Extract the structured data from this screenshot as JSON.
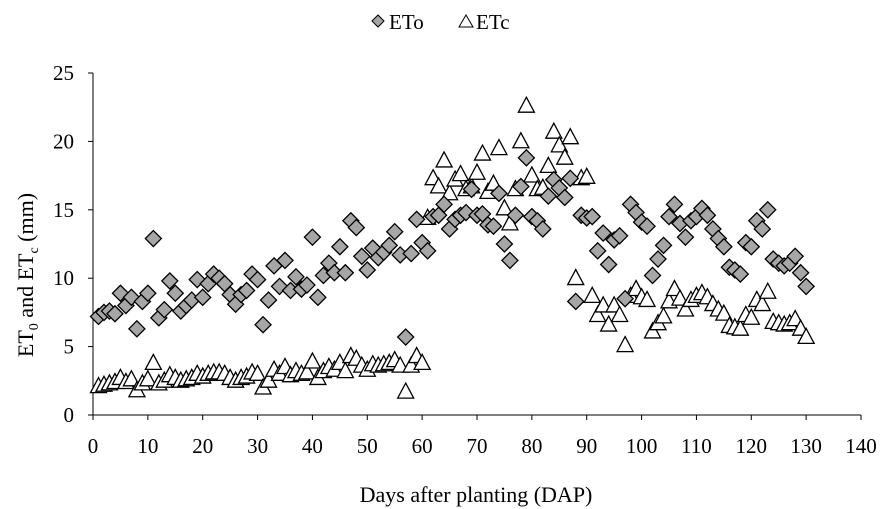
{
  "chart_data": {
    "type": "scatter",
    "legend": {
      "placement": "top-center"
    },
    "xlabel": "Days after planting (DAP)",
    "ylabel": {
      "p1": "ET",
      "s1": "0",
      "p2": " and ET",
      "s2": "c",
      "p3": " (mm)"
    },
    "xlim": [
      0,
      140
    ],
    "ylim": [
      0,
      25
    ],
    "xticks": [
      0,
      10,
      20,
      30,
      40,
      50,
      60,
      70,
      80,
      90,
      100,
      110,
      120,
      130,
      140
    ],
    "yticks": [
      0,
      5,
      10,
      15,
      20,
      25
    ],
    "grid": false,
    "series": [
      {
        "name": "ETo",
        "marker": "diamond",
        "color": "#a6a6a6",
        "x": [
          1,
          2,
          3,
          4,
          5,
          6,
          7,
          8,
          9,
          10,
          11,
          12,
          13,
          14,
          15,
          16,
          17,
          18,
          19,
          20,
          21,
          22,
          23,
          24,
          25,
          26,
          27,
          28,
          29,
          30,
          31,
          32,
          33,
          34,
          35,
          36,
          37,
          38,
          39,
          40,
          41,
          42,
          43,
          44,
          45,
          46,
          47,
          48,
          49,
          50,
          51,
          52,
          53,
          54,
          55,
          56,
          57,
          58,
          59,
          60,
          61,
          62,
          63,
          64,
          65,
          66,
          67,
          68,
          69,
          70,
          71,
          72,
          73,
          74,
          75,
          76,
          77,
          78,
          79,
          80,
          81,
          82,
          83,
          84,
          85,
          86,
          87,
          88,
          89,
          90,
          91,
          92,
          93,
          94,
          95,
          96,
          97,
          98,
          99,
          100,
          101,
          102,
          103,
          104,
          105,
          106,
          107,
          108,
          109,
          110,
          111,
          112,
          113,
          114,
          115,
          116,
          117,
          118,
          119,
          120,
          121,
          122,
          123,
          124,
          125,
          126,
          127,
          128,
          129,
          130
        ],
        "y": [
          7.2,
          7.5,
          7.6,
          7.4,
          8.9,
          8.0,
          8.6,
          6.3,
          8.3,
          8.9,
          12.9,
          7.1,
          7.7,
          9.8,
          8.9,
          7.6,
          8.0,
          8.4,
          9.9,
          8.6,
          9.6,
          10.3,
          10.0,
          9.6,
          8.8,
          8.1,
          8.8,
          9.1,
          10.3,
          9.9,
          6.6,
          8.4,
          10.9,
          9.4,
          11.3,
          9.1,
          10.1,
          9.2,
          9.5,
          13.0,
          8.6,
          10.2,
          11.1,
          10.4,
          12.3,
          10.4,
          14.2,
          13.7,
          11.6,
          10.6,
          12.2,
          11.5,
          11.9,
          12.4,
          13.4,
          11.7,
          5.7,
          11.8,
          14.3,
          12.6,
          12.0,
          14.5,
          14.6,
          15.4,
          13.6,
          14.3,
          14.6,
          14.8,
          16.5,
          14.6,
          14.7,
          13.9,
          13.8,
          16.2,
          12.5,
          11.3,
          14.6,
          16.7,
          18.8,
          14.5,
          14.2,
          13.6,
          16.0,
          17.2,
          16.6,
          15.9,
          17.3,
          8.3,
          14.6,
          14.4,
          14.5,
          12.0,
          13.3,
          11.0,
          12.8,
          13.1,
          8.5,
          15.4,
          14.8,
          14.1,
          13.8,
          10.2,
          11.4,
          12.4,
          14.5,
          15.4,
          14.0,
          13.0,
          14.2,
          14.5,
          15.1,
          14.6,
          13.6,
          12.9,
          12.3,
          10.8,
          10.6,
          10.3,
          12.6,
          12.3,
          14.2,
          13.6,
          15.0,
          11.4,
          11.1,
          10.9,
          11.1,
          11.6,
          10.4,
          9.4
        ]
      },
      {
        "name": "ETc",
        "marker": "triangle",
        "color": "#ffffff",
        "x": [
          1,
          2,
          3,
          4,
          5,
          6,
          7,
          8,
          9,
          10,
          11,
          12,
          13,
          14,
          15,
          16,
          17,
          18,
          19,
          20,
          21,
          22,
          23,
          24,
          25,
          26,
          27,
          28,
          29,
          30,
          31,
          32,
          33,
          34,
          35,
          36,
          37,
          38,
          39,
          40,
          41,
          42,
          43,
          44,
          45,
          46,
          47,
          48,
          49,
          50,
          51,
          52,
          53,
          54,
          55,
          56,
          57,
          58,
          59,
          60,
          61,
          62,
          63,
          64,
          65,
          66,
          67,
          68,
          69,
          70,
          71,
          72,
          73,
          74,
          75,
          76,
          77,
          78,
          79,
          80,
          81,
          82,
          83,
          84,
          85,
          86,
          87,
          88,
          89,
          90,
          91,
          92,
          93,
          94,
          95,
          96,
          97,
          98,
          99,
          100,
          101,
          102,
          103,
          104,
          105,
          106,
          107,
          108,
          109,
          110,
          111,
          112,
          113,
          114,
          115,
          116,
          117,
          118,
          119,
          120,
          121,
          122,
          123,
          124,
          125,
          126,
          127,
          128,
          129,
          130
        ],
        "y": [
          2.0,
          2.1,
          2.2,
          2.3,
          2.6,
          2.3,
          2.5,
          1.7,
          2.2,
          2.5,
          3.7,
          2.2,
          2.4,
          2.8,
          2.6,
          2.4,
          2.5,
          2.6,
          2.9,
          2.7,
          2.9,
          3.0,
          3.0,
          2.9,
          2.6,
          2.4,
          2.6,
          2.7,
          3.0,
          2.9,
          1.9,
          2.4,
          3.2,
          2.9,
          3.4,
          2.8,
          3.1,
          2.9,
          3.0,
          3.8,
          2.6,
          3.1,
          3.4,
          3.2,
          3.7,
          3.1,
          4.2,
          4.0,
          3.5,
          3.2,
          3.6,
          3.5,
          3.6,
          3.7,
          3.9,
          3.5,
          1.6,
          3.5,
          4.2,
          3.7,
          14.3,
          17.2,
          16.6,
          18.5,
          16.1,
          17.1,
          17.5,
          16.4,
          16.6,
          17.6,
          19.0,
          16.2,
          16.8,
          19.4,
          15.0,
          13.9,
          16.4,
          19.9,
          22.5,
          17.4,
          16.4,
          16.5,
          18.1,
          20.6,
          19.6,
          18.7,
          20.2,
          9.9,
          17.2,
          17.3,
          8.6,
          7.2,
          7.9,
          6.5,
          7.9,
          7.2,
          5.0,
          8.6,
          9.1,
          8.5,
          8.3,
          6.0,
          6.6,
          7.1,
          8.2,
          9.1,
          8.4,
          7.6,
          8.3,
          8.6,
          8.8,
          8.5,
          8.0,
          7.6,
          7.3,
          6.4,
          6.3,
          6.2,
          7.2,
          7.0,
          8.3,
          8.0,
          8.9,
          6.7,
          6.6,
          6.5,
          6.6,
          6.9,
          6.2,
          5.6
        ]
      }
    ]
  }
}
